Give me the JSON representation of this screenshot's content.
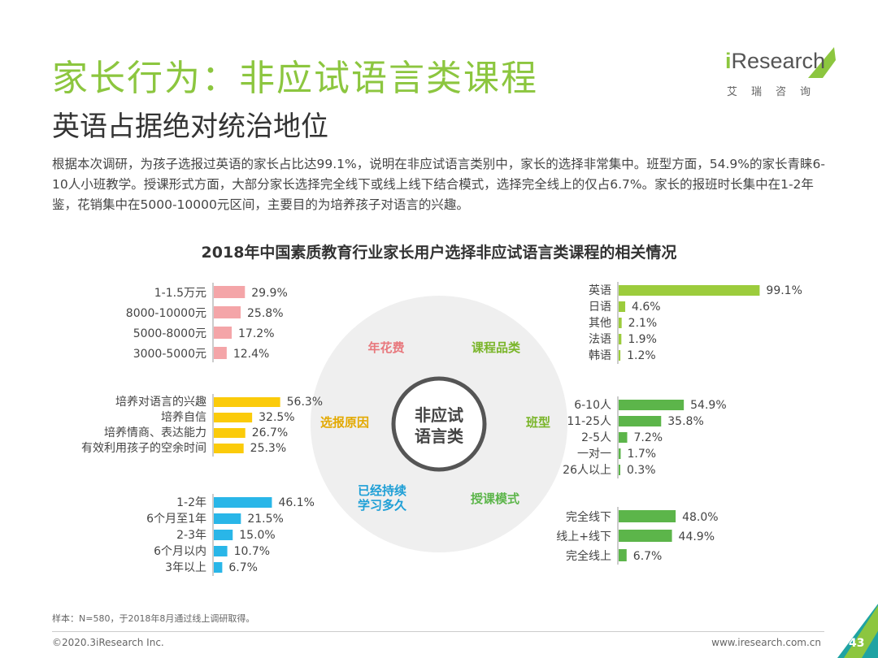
{
  "header": {
    "title": "家长行为：非应试语言类课程",
    "subtitle": "英语占据绝对统治地位",
    "logo_text": "Research",
    "logo_i": "i",
    "logo_sub": "艾瑞咨询"
  },
  "description": "根据本次调研，为孩子选报过英语的家长占比达99.1%，说明在非应试语言类别中，家长的选择非常集中。班型方面，54.9%的家长青睐6-10人小班教学。授课形式方面，大部分家长选择完全线下或线上线下结合模式，选择完全线上的仅占6.7%。家长的报班时长集中在1-2年鉴，花销集中在5000-10000元区间，主要目的为培养孩子对语言的兴趣。",
  "colors": {
    "accent": "#8cc63f",
    "pink": "#f4a5a8",
    "yellow": "#fbcb0a",
    "blue": "#29b6e8",
    "lightgreen": "#9ccc3c",
    "green": "#5cb54a",
    "teal": "#1fa3a3"
  },
  "chart_data": {
    "title": "2018年中国素质教育行业家长用户选择非应试语言类课程的相关情况",
    "center_label": [
      "非应试",
      "语言类"
    ],
    "panels": [
      {
        "name": "年花费",
        "type": "bar",
        "categories": [
          "1-1.5万元",
          "8000-10000元",
          "5000-8000元",
          "3000-5000元"
        ],
        "values": [
          29.9,
          25.8,
          17.2,
          12.4
        ],
        "labels": [
          "29.9%",
          "25.8%",
          "17.2%",
          "12.4%"
        ]
      },
      {
        "name": "选报原因",
        "type": "bar",
        "categories": [
          "培养对语言的兴趣",
          "培养自信",
          "培养情商、表达能力",
          "有效利用孩子的空余时间"
        ],
        "values": [
          56.3,
          32.5,
          26.7,
          25.3
        ],
        "labels": [
          "56.3%",
          "32.5%",
          "26.7%",
          "25.3%"
        ]
      },
      {
        "name": "已经持续学习多久",
        "name_lines": [
          "已经持续",
          "学习多久"
        ],
        "type": "bar",
        "categories": [
          "1-2年",
          "6个月至1年",
          "2-3年",
          "6个月以内",
          "3年以上"
        ],
        "values": [
          46.1,
          21.5,
          15.0,
          10.7,
          6.7
        ],
        "labels": [
          "46.1%",
          "21.5%",
          "15.0%",
          "10.7%",
          "6.7%"
        ]
      },
      {
        "name": "课程品类",
        "type": "bar",
        "categories": [
          "英语",
          "日语",
          "其他",
          "法语",
          "韩语"
        ],
        "values": [
          99.1,
          4.6,
          2.1,
          1.9,
          1.2
        ],
        "labels": [
          "99.1%",
          "4.6%",
          "2.1%",
          "1.9%",
          "1.2%"
        ]
      },
      {
        "name": "班型",
        "type": "bar",
        "categories": [
          "6-10人",
          "11-25人",
          "2-5人",
          "一对一",
          "26人以上"
        ],
        "values": [
          54.9,
          35.8,
          7.2,
          1.7,
          0.3
        ],
        "labels": [
          "54.9%",
          "35.8%",
          "7.2%",
          "1.7%",
          "0.3%"
        ]
      },
      {
        "name": "授课模式",
        "type": "bar",
        "categories": [
          "完全线下",
          "线上+线下",
          "完全线上"
        ],
        "values": [
          48.0,
          44.9,
          6.7
        ],
        "labels": [
          "48.0%",
          "44.9%",
          "6.7%"
        ]
      }
    ]
  },
  "footer": {
    "note": "样本：N=580，于2018年8月通过线上调研取得。",
    "copyright": "©2020.3iResearch Inc.",
    "website": "www.iresearch.com.cn",
    "page": "43"
  }
}
